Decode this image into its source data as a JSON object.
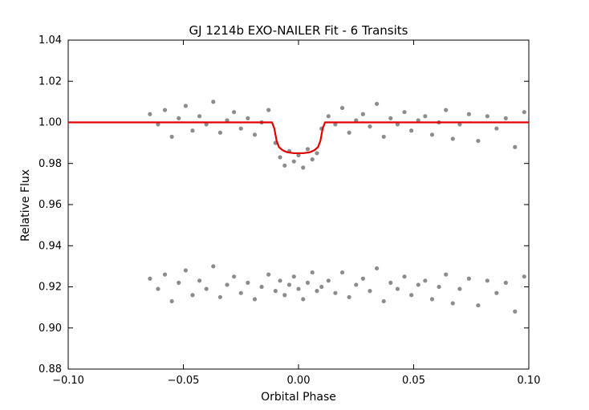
{
  "chart_data": {
    "type": "scatter",
    "title": "GJ 1214b EXO-NAILER Fit - 6 Transits",
    "xlabel": "Orbital Phase",
    "ylabel": "Relative Flux",
    "xlim": [
      -0.1,
      0.1
    ],
    "ylim": [
      0.88,
      1.04
    ],
    "xticks": [
      -0.1,
      -0.05,
      0.0,
      0.05,
      0.1
    ],
    "xtick_labels": [
      "−0.10",
      "−0.05",
      "0.00",
      "0.05",
      "0.10"
    ],
    "yticks": [
      0.88,
      0.9,
      0.92,
      0.94,
      0.96,
      0.98,
      1.0,
      1.02,
      1.04
    ],
    "ytick_labels": [
      "0.88",
      "0.90",
      "0.92",
      "0.94",
      "0.96",
      "0.98",
      "1.00",
      "1.02",
      "1.04"
    ],
    "grid": false,
    "series": [
      {
        "kind": "points",
        "color": "#000000",
        "opacity": 0.45,
        "x": [
          -0.0645,
          -0.061,
          -0.058,
          -0.055,
          -0.052,
          -0.049,
          -0.046,
          -0.043,
          -0.04,
          -0.037,
          -0.034,
          -0.031,
          -0.028,
          -0.025,
          -0.022,
          -0.019,
          -0.016,
          -0.013,
          -0.01,
          -0.008,
          -0.006,
          -0.004,
          -0.002,
          0.0,
          0.002,
          0.004,
          0.006,
          0.008,
          0.01,
          0.013,
          0.016,
          0.019,
          0.022,
          0.025,
          0.028,
          0.031,
          0.034,
          0.037,
          0.04,
          0.043,
          0.046,
          0.049,
          0.052,
          0.055,
          0.058,
          0.061,
          0.064,
          0.067,
          0.07,
          0.074,
          0.078,
          0.082,
          0.086,
          0.09,
          0.094,
          0.098
        ],
        "y": [
          1.004,
          0.999,
          1.006,
          0.993,
          1.002,
          1.008,
          0.996,
          1.003,
          0.999,
          1.01,
          0.995,
          1.001,
          1.005,
          0.997,
          1.002,
          0.994,
          1.0,
          1.006,
          0.99,
          0.983,
          0.979,
          0.986,
          0.981,
          0.984,
          0.978,
          0.987,
          0.982,
          0.985,
          0.997,
          1.003,
          0.999,
          1.007,
          0.995,
          1.001,
          1.004,
          0.998,
          1.009,
          0.993,
          1.002,
          0.999,
          1.005,
          0.996,
          1.001,
          1.003,
          0.994,
          1.0,
          1.006,
          0.992,
          0.999,
          1.004,
          0.991,
          1.003,
          0.997,
          1.002,
          0.988,
          1.005
        ]
      },
      {
        "kind": "points",
        "color": "#000000",
        "opacity": 0.45,
        "x": [
          -0.0645,
          -0.061,
          -0.058,
          -0.055,
          -0.052,
          -0.049,
          -0.046,
          -0.043,
          -0.04,
          -0.037,
          -0.034,
          -0.031,
          -0.028,
          -0.025,
          -0.022,
          -0.019,
          -0.016,
          -0.013,
          -0.01,
          -0.008,
          -0.006,
          -0.004,
          -0.002,
          0.0,
          0.002,
          0.004,
          0.006,
          0.008,
          0.01,
          0.013,
          0.016,
          0.019,
          0.022,
          0.025,
          0.028,
          0.031,
          0.034,
          0.037,
          0.04,
          0.043,
          0.046,
          0.049,
          0.052,
          0.055,
          0.058,
          0.061,
          0.064,
          0.067,
          0.07,
          0.074,
          0.078,
          0.082,
          0.086,
          0.09,
          0.094,
          0.098
        ],
        "y": [
          0.924,
          0.919,
          0.926,
          0.913,
          0.922,
          0.928,
          0.916,
          0.923,
          0.919,
          0.93,
          0.915,
          0.921,
          0.925,
          0.917,
          0.922,
          0.914,
          0.92,
          0.926,
          0.918,
          0.923,
          0.916,
          0.921,
          0.925,
          0.919,
          0.914,
          0.922,
          0.927,
          0.918,
          0.92,
          0.923,
          0.917,
          0.927,
          0.915,
          0.921,
          0.924,
          0.918,
          0.929,
          0.913,
          0.922,
          0.919,
          0.925,
          0.916,
          0.921,
          0.923,
          0.914,
          0.92,
          0.926,
          0.912,
          0.919,
          0.924,
          0.911,
          0.923,
          0.917,
          0.922,
          0.908,
          0.925
        ]
      },
      {
        "kind": "line",
        "color": "#e00000",
        "x": [
          -0.1,
          -0.0115,
          -0.0105,
          -0.0095,
          -0.0085,
          -0.007,
          -0.005,
          -0.002,
          0.0,
          0.002,
          0.005,
          0.007,
          0.0085,
          0.0095,
          0.0105,
          0.0115,
          0.1
        ],
        "y": [
          1.0,
          1.0,
          0.997,
          0.991,
          0.988,
          0.9865,
          0.9855,
          0.985,
          0.985,
          0.985,
          0.9855,
          0.9865,
          0.988,
          0.991,
          0.997,
          1.0,
          1.0
        ]
      }
    ]
  }
}
